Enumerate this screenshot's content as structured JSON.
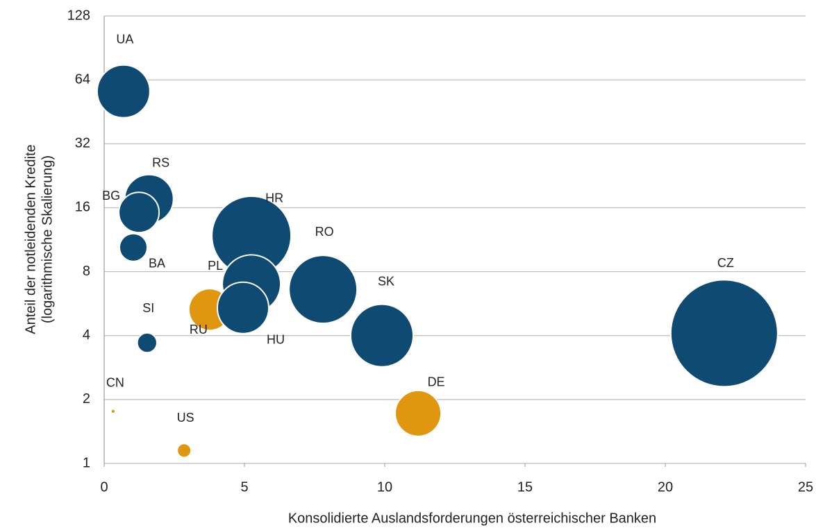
{
  "chart_data": {
    "type": "bubble",
    "x_label": "Konsolidierte Auslandsforderungen österreichischer Banken",
    "y_label": [
      "Anteil der notleidenden Kredite",
      "(logarithmische Skalierung)"
    ],
    "xlim": [
      0,
      25
    ],
    "xticks": [
      0,
      5,
      10,
      15,
      20,
      25
    ],
    "ylim": [
      1,
      128
    ],
    "yticks": [
      1,
      2,
      4,
      8,
      16,
      32,
      64,
      128
    ],
    "y_log": true,
    "grid": true,
    "points": [
      {
        "label": "UA",
        "x": 0.69,
        "y": 56.5,
        "size": 14.4,
        "color": "#0e4a72"
      },
      {
        "label": "RS",
        "x": 1.6,
        "y": 17.6,
        "size": 12.3,
        "color": "#0e4a72"
      },
      {
        "label": "BG",
        "x": 1.24,
        "y": 15.2,
        "size": 8.4,
        "color": "#0e4a72"
      },
      {
        "label": "BA",
        "x": 1.04,
        "y": 10.4,
        "size": 4,
        "color": "#0e4a72"
      },
      {
        "label": "SI",
        "x": 1.53,
        "y": 3.7,
        "size": 2,
        "color": "#0e4a72"
      },
      {
        "label": "CN",
        "x": 0.32,
        "y": 1.76,
        "size": 0.1,
        "color": "#e0960f"
      },
      {
        "label": "US",
        "x": 2.85,
        "y": 1.15,
        "size": 1,
        "color": "#e0960f"
      },
      {
        "label": "HR",
        "x": 5.25,
        "y": 11.8,
        "size": 32.5,
        "color": "#0e4a72"
      },
      {
        "label": "PL",
        "x": 5.25,
        "y": 7.0,
        "size": 17.6,
        "color": "#0e4a72"
      },
      {
        "label": "RU",
        "x": 3.76,
        "y": 5.3,
        "size": 9,
        "color": "#e0960f"
      },
      {
        "label": "HU",
        "x": 4.95,
        "y": 5.4,
        "size": 13.7,
        "color": "#0e4a72"
      },
      {
        "label": "RO",
        "x": 7.8,
        "y": 6.6,
        "size": 24,
        "color": "#0e4a72"
      },
      {
        "label": "SK",
        "x": 9.9,
        "y": 4.0,
        "size": 20.3,
        "color": "#0e4a72"
      },
      {
        "label": "CZ",
        "x": 22.1,
        "y": 4.1,
        "size": 59.3,
        "color": "#0e4a72"
      },
      {
        "label": "DE",
        "x": 11.19,
        "y": 1.72,
        "size": 10.9,
        "color": "#e0960f"
      }
    ]
  }
}
